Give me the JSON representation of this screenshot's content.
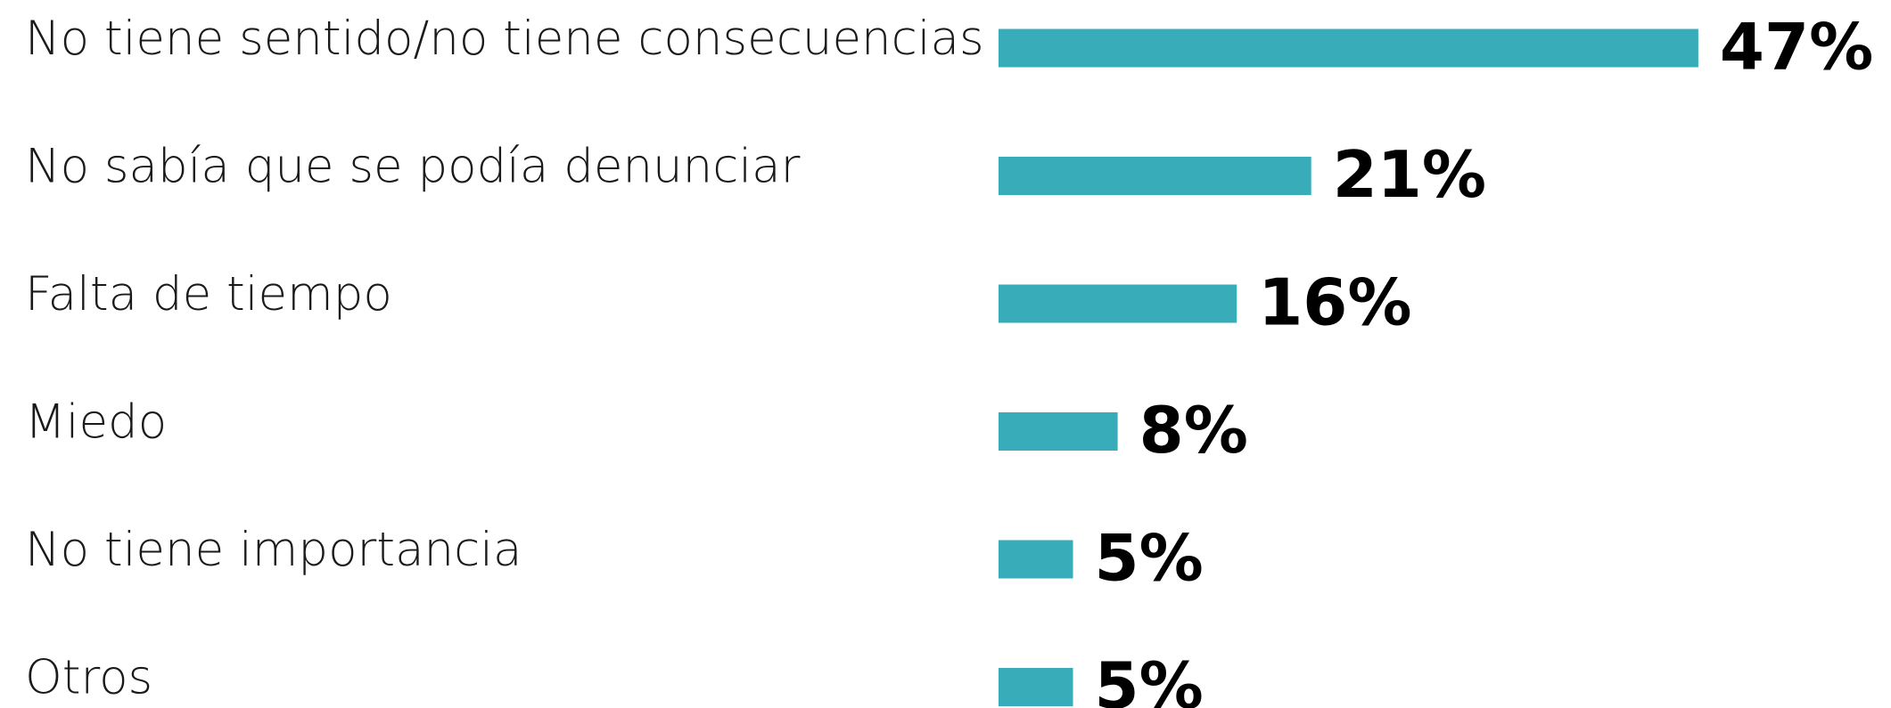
{
  "chart_data": {
    "type": "bar",
    "orientation": "horizontal",
    "categories": [
      "No tiene sentido/no tiene consecuencias",
      "No sabía que se podía denunciar",
      "Falta de tiempo",
      "Miedo",
      "No tiene importancia",
      "Otros"
    ],
    "values": [
      47,
      21,
      16,
      8,
      5,
      5
    ],
    "value_labels": [
      "47%",
      "21%",
      "16%",
      "8%",
      "5%",
      "5%"
    ],
    "color": "#38adb9"
  }
}
